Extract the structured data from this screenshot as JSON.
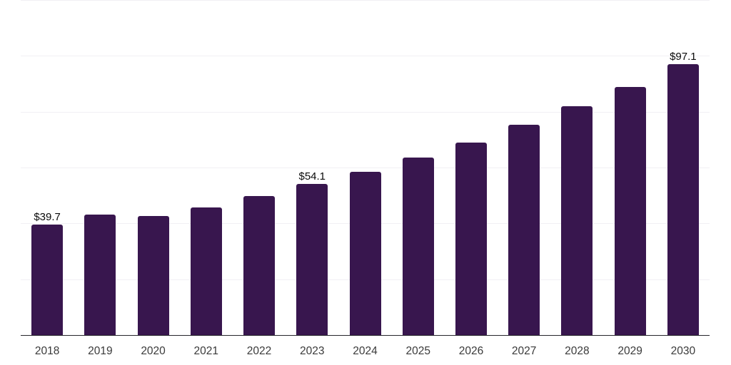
{
  "chart_data": {
    "type": "bar",
    "categories": [
      "2018",
      "2019",
      "2020",
      "2021",
      "2022",
      "2023",
      "2024",
      "2025",
      "2026",
      "2027",
      "2028",
      "2029",
      "2030"
    ],
    "values": [
      39.7,
      43.1,
      42.7,
      45.8,
      49.8,
      54.1,
      58.5,
      63.5,
      69.0,
      75.3,
      81.9,
      88.9,
      97.1
    ],
    "bar_labels": [
      "$39.7",
      "",
      "",
      "",
      "",
      "$54.1",
      "",
      "",
      "",
      "",
      "",
      "",
      "$97.1"
    ],
    "xlabel": "",
    "ylabel": "",
    "ylim": [
      0,
      120
    ],
    "grid_step": 20,
    "grid": "horizontal",
    "y_axis_tick_labels_visible": false,
    "legend": "none",
    "colors": {
      "bar": "#38164e",
      "grid": "#f1f0f4",
      "axis_line": "#26262b",
      "bar_label_text": "#0a0a0a",
      "tick_label_text": "#3a3a3a",
      "background": "#ffffff"
    }
  }
}
